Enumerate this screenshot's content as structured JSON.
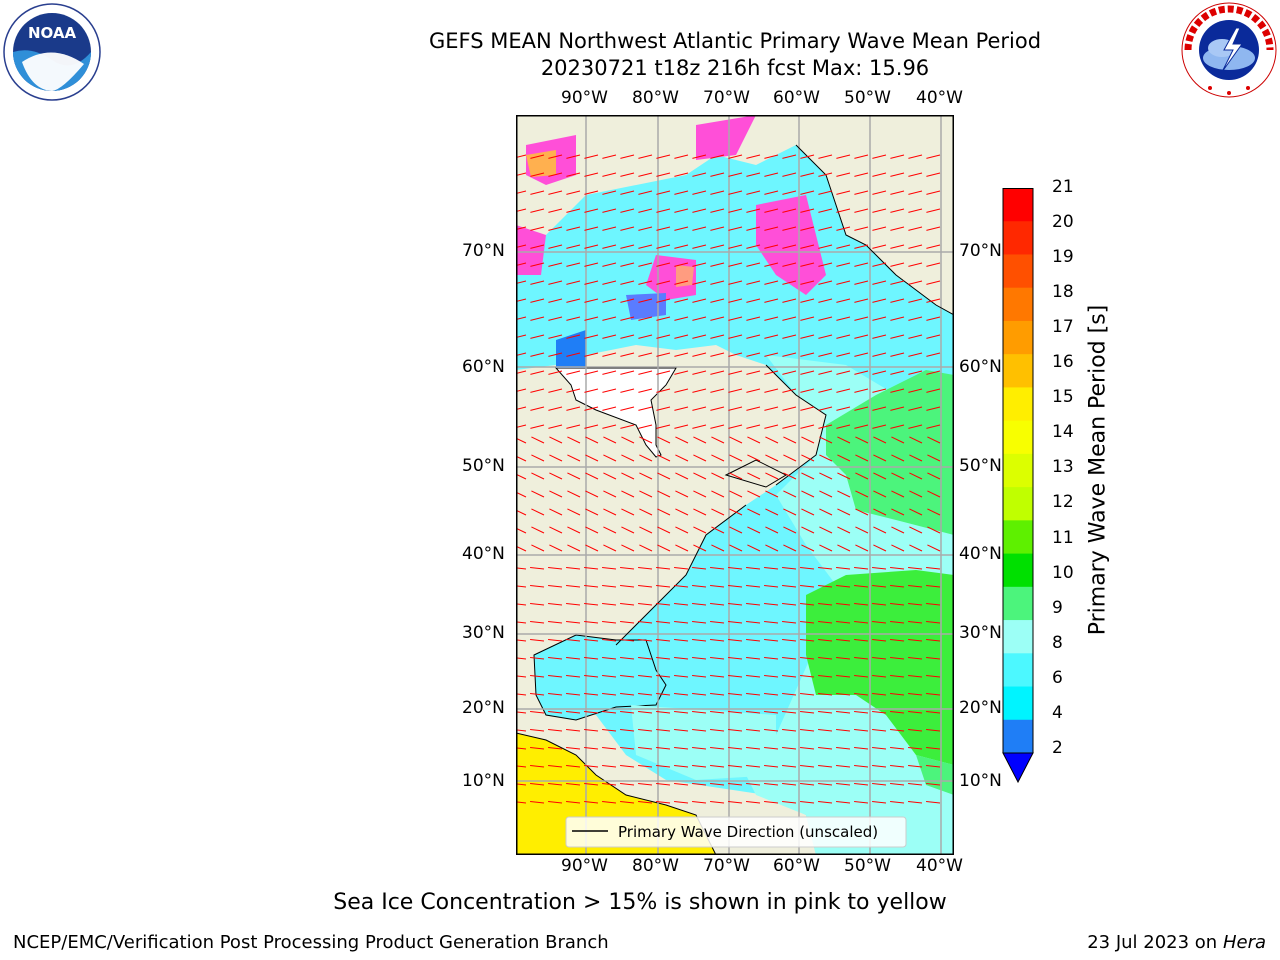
{
  "header": {
    "title_line1": "GEFS MEAN Northwest Atlantic Primary Wave Mean Period",
    "title_line2": "20230721 t18z 216h fcst   Max: 15.96"
  },
  "logos": {
    "noaa_text": "NOAA",
    "nws_text": "NATIONAL WEATHER SERVICE"
  },
  "map": {
    "lon_labels": [
      "90°W",
      "80°W",
      "70°W",
      "60°W",
      "50°W",
      "40°W"
    ],
    "lat_labels": [
      "70°N",
      "60°N",
      "50°N",
      "40°N",
      "30°N",
      "20°N",
      "10°N"
    ],
    "legend_label": "Primary Wave Direction (unscaled)",
    "land_color": "#efefdc",
    "ocean_color": "#6ef6ff",
    "arrow_color": "#ff0000"
  },
  "colorbar": {
    "label": "Primary Wave Mean Period [s]",
    "ticks": [
      "21",
      "20",
      "19",
      "18",
      "17",
      "16",
      "15",
      "14",
      "13",
      "12",
      "11",
      "10",
      "9",
      "8",
      "6",
      "4",
      "2"
    ],
    "colors": [
      "#ff0000",
      "#ff2800",
      "#ff5000",
      "#ff7800",
      "#ff9c00",
      "#ffc000",
      "#ffee00",
      "#f8ff00",
      "#dcff00",
      "#c0ff00",
      "#5ef000",
      "#00e000",
      "#4cf47c",
      "#9cfff6",
      "#4cf8ff",
      "#00f4ff",
      "#1f7ef6",
      "#0000ff"
    ]
  },
  "notes": {
    "sea_ice": "Sea Ice Concentration > 15% is shown in pink to yellow"
  },
  "footer": {
    "left": "NCEP/EMC/Verification Post Processing Product Generation Branch",
    "date": "23 Jul 2023 on ",
    "machine": "Hera"
  }
}
